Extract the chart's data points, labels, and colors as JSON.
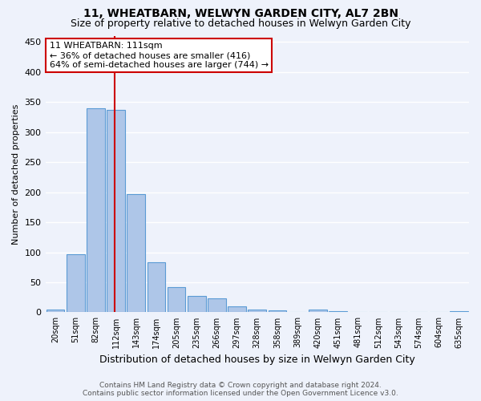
{
  "title": "11, WHEATBARN, WELWYN GARDEN CITY, AL7 2BN",
  "subtitle": "Size of property relative to detached houses in Welwyn Garden City",
  "xlabel": "Distribution of detached houses by size in Welwyn Garden City",
  "ylabel": "Number of detached properties",
  "footer1": "Contains HM Land Registry data © Crown copyright and database right 2024.",
  "footer2": "Contains public sector information licensed under the Open Government Licence v3.0.",
  "bin_labels": [
    "20sqm",
    "51sqm",
    "82sqm",
    "112sqm",
    "143sqm",
    "174sqm",
    "205sqm",
    "235sqm",
    "266sqm",
    "297sqm",
    "328sqm",
    "358sqm",
    "389sqm",
    "420sqm",
    "451sqm",
    "481sqm",
    "512sqm",
    "543sqm",
    "574sqm",
    "604sqm",
    "635sqm"
  ],
  "bar_values": [
    5,
    97,
    340,
    337,
    197,
    84,
    42,
    27,
    23,
    10,
    5,
    3,
    1,
    4,
    2,
    0,
    1,
    0,
    1,
    0,
    2
  ],
  "bar_color": "#aec6e8",
  "bar_edge_color": "#5b9bd5",
  "marker_line_color": "#cc0000",
  "annotation_text": "11 WHEATBARN: 111sqm\n← 36% of detached houses are smaller (416)\n64% of semi-detached houses are larger (744) →",
  "annotation_box_color": "#ffffff",
  "annotation_box_edge": "#cc0000",
  "ylim": [
    0,
    460
  ],
  "bg_color": "#eef2fb",
  "grid_color": "#ffffff",
  "title_fontsize": 10,
  "subtitle_fontsize": 9,
  "ylabel_fontsize": 8,
  "xlabel_fontsize": 9,
  "tick_fontsize": 7,
  "ytick_fontsize": 8,
  "annotation_fontsize": 8,
  "footer_fontsize": 6.5
}
